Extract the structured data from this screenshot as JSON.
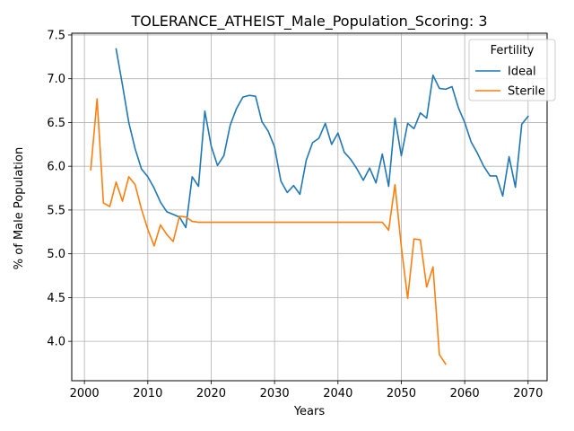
{
  "chart_data": {
    "type": "line",
    "title": "TOLERANCE_ATHEIST_Male_Population_Scoring: 3",
    "xlabel": "Years",
    "ylabel": "% of Male Population",
    "xlim": [
      1998,
      2073
    ],
    "ylim": [
      3.55,
      7.52
    ],
    "xticks": [
      2000,
      2010,
      2020,
      2030,
      2040,
      2050,
      2060,
      2070
    ],
    "yticks": [
      4.0,
      4.5,
      5.0,
      5.5,
      6.0,
      6.5,
      7.0,
      7.5
    ],
    "ytick_labels": [
      "4.0",
      "4.5",
      "5.0",
      "5.5",
      "6.0",
      "6.5",
      "7.0",
      "7.5"
    ],
    "grid": true,
    "legend": {
      "title": "Fertility",
      "position": "top-right"
    },
    "series": [
      {
        "name": "Ideal",
        "color": "#1f77b4",
        "points": [
          [
            2005,
            7.34
          ],
          [
            2006,
            6.93
          ],
          [
            2007,
            6.5
          ],
          [
            2008,
            6.2
          ],
          [
            2009,
            5.97
          ],
          [
            2010,
            5.88
          ],
          [
            2011,
            5.75
          ],
          [
            2012,
            5.59
          ],
          [
            2013,
            5.48
          ],
          [
            2014,
            5.45
          ],
          [
            2015,
            5.42
          ],
          [
            2016,
            5.3
          ],
          [
            2017,
            5.88
          ],
          [
            2018,
            5.77
          ],
          [
            2019,
            6.63
          ],
          [
            2020,
            6.23
          ],
          [
            2021,
            6.01
          ],
          [
            2022,
            6.12
          ],
          [
            2023,
            6.47
          ],
          [
            2024,
            6.66
          ],
          [
            2025,
            6.79
          ],
          [
            2026,
            6.81
          ],
          [
            2027,
            6.8
          ],
          [
            2028,
            6.51
          ],
          [
            2029,
            6.4
          ],
          [
            2030,
            6.22
          ],
          [
            2031,
            5.83
          ],
          [
            2032,
            5.7
          ],
          [
            2033,
            5.78
          ],
          [
            2034,
            5.68
          ],
          [
            2035,
            6.07
          ],
          [
            2036,
            6.27
          ],
          [
            2037,
            6.32
          ],
          [
            2038,
            6.49
          ],
          [
            2039,
            6.25
          ],
          [
            2040,
            6.38
          ],
          [
            2041,
            6.16
          ],
          [
            2042,
            6.08
          ],
          [
            2043,
            5.97
          ],
          [
            2044,
            5.84
          ],
          [
            2045,
            5.98
          ],
          [
            2046,
            5.81
          ],
          [
            2047,
            6.14
          ],
          [
            2048,
            5.77
          ],
          [
            2049,
            6.55
          ],
          [
            2050,
            6.12
          ],
          [
            2051,
            6.49
          ],
          [
            2052,
            6.43
          ],
          [
            2053,
            6.61
          ],
          [
            2054,
            6.55
          ],
          [
            2055,
            7.04
          ],
          [
            2056,
            6.89
          ],
          [
            2057,
            6.88
          ],
          [
            2058,
            6.91
          ],
          [
            2059,
            6.67
          ],
          [
            2060,
            6.5
          ],
          [
            2061,
            6.28
          ],
          [
            2062,
            6.15
          ],
          [
            2063,
            6.0
          ],
          [
            2064,
            5.89
          ],
          [
            2065,
            5.89
          ],
          [
            2066,
            5.66
          ],
          [
            2067,
            6.11
          ],
          [
            2068,
            5.76
          ],
          [
            2069,
            6.48
          ],
          [
            2070,
            6.57
          ]
        ]
      },
      {
        "name": "Sterile",
        "color": "#ff7f0e",
        "points": [
          [
            2001,
            5.96
          ],
          [
            2002,
            6.77
          ],
          [
            2003,
            5.58
          ],
          [
            2004,
            5.54
          ],
          [
            2005,
            5.82
          ],
          [
            2006,
            5.6
          ],
          [
            2007,
            5.88
          ],
          [
            2008,
            5.79
          ],
          [
            2009,
            5.51
          ],
          [
            2010,
            5.28
          ],
          [
            2011,
            5.09
          ],
          [
            2012,
            5.33
          ],
          [
            2013,
            5.22
          ],
          [
            2014,
            5.14
          ],
          [
            2015,
            5.43
          ],
          [
            2016,
            5.42
          ],
          [
            2017,
            5.37
          ],
          [
            2018,
            5.36
          ],
          [
            2019,
            5.36
          ],
          [
            2020,
            5.36
          ],
          [
            2025,
            5.36
          ],
          [
            2030,
            5.36
          ],
          [
            2035,
            5.36
          ],
          [
            2040,
            5.36
          ],
          [
            2045,
            5.36
          ],
          [
            2047,
            5.36
          ],
          [
            2048,
            5.27
          ],
          [
            2049,
            5.79
          ],
          [
            2050,
            5.08
          ],
          [
            2051,
            4.49
          ],
          [
            2052,
            5.17
          ],
          [
            2053,
            5.16
          ],
          [
            2054,
            4.62
          ],
          [
            2055,
            4.85
          ],
          [
            2056,
            3.85
          ],
          [
            2057,
            3.74
          ]
        ]
      }
    ]
  }
}
